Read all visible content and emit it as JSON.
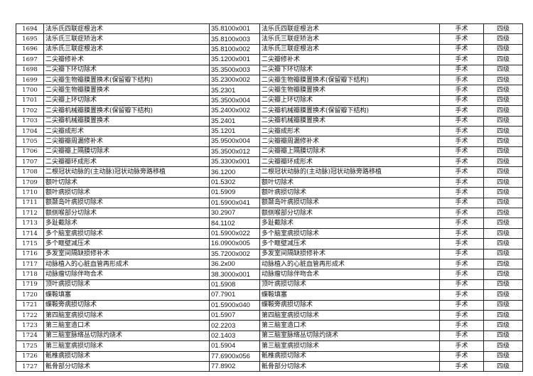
{
  "table": {
    "rows": [
      [
        "1694",
        "法乐氏四联症根治术",
        "35.8100x001",
        "法乐氏四联症根治术",
        "手术",
        "四级"
      ],
      [
        "1695",
        "法乐氏三联症矫治术",
        "35.8100x003",
        "法乐氏三联症矫治术",
        "手术",
        "四级"
      ],
      [
        "1696",
        "法乐氏三联症根治术",
        "35.8100x002",
        "法乐氏三联症根治术",
        "手术",
        "四级"
      ],
      [
        "1697",
        "二尖瓣修补术",
        "35.1200x001",
        "二尖瓣修补术",
        "手术",
        "四级"
      ],
      [
        "1698",
        "二尖瓣下环切除术",
        "35.3500x003",
        "二尖瓣下环切除术",
        "手术",
        "四级"
      ],
      [
        "1699",
        "二尖瓣生物瓣膜置换术(保留瓣下结构)",
        "35.2300x002",
        "二尖瓣生物瓣膜置换术(保留瓣下结构)",
        "手术",
        "四级"
      ],
      [
        "1700",
        "二尖瓣生物瓣膜置换术",
        "35.2301",
        "二尖瓣生物瓣膜置换术",
        "手术",
        "四级"
      ],
      [
        "1701",
        "二尖瓣上环切除术",
        "35.3500x004",
        "二尖瓣上环切除术",
        "手术",
        "四级"
      ],
      [
        "1702",
        "二尖瓣机械瓣膜置换术(保留瓣下结构)",
        "35.2400x002",
        "二尖瓣机械瓣膜置换术(保留瓣下结构)",
        "手术",
        "四级"
      ],
      [
        "1703",
        "二尖瓣机械瓣膜置换术",
        "35.2401",
        "二尖瓣机械瓣膜置换术",
        "手术",
        "四级"
      ],
      [
        "1704",
        "二尖瓣成形术",
        "35.1201",
        "二尖瓣成形术",
        "手术",
        "四级"
      ],
      [
        "1705",
        "二尖瓣瓣周漏修补术",
        "35.9500x004",
        "二尖瓣瓣周漏修补术",
        "手术",
        "四级"
      ],
      [
        "1706",
        "二尖瓣瓣上隔膜切除术",
        "35.3500x012",
        "二尖瓣瓣上隔膜切除术",
        "手术",
        "四级"
      ],
      [
        "1707",
        "二尖瓣瓣环成形术",
        "35.3300x001",
        "二尖瓣瓣环成形术",
        "手术",
        "四级"
      ],
      [
        "1708",
        "二根冠状动脉的(主动脉)冠状动脉旁路移植",
        "36.1200",
        "二根冠状动脉的(主动脉)冠状动脉旁路移植",
        "手术",
        "四级"
      ],
      [
        "1709",
        "额叶切除术",
        "01.5302",
        "额叶切除术",
        "手术",
        "四级"
      ],
      [
        "1710",
        "额叶病损切除术",
        "01.5909",
        "额叶病损切除术",
        "手术",
        "四级"
      ],
      [
        "1711",
        "额颞岛叶病损切除术",
        "01.5900x041",
        "额颞岛叶病损切除术",
        "手术",
        "四级"
      ],
      [
        "1712",
        "额侧喉部分切除术",
        "30.2907",
        "额侧喉部分切除术",
        "手术",
        "四级"
      ],
      [
        "1713",
        "多趾截除术",
        "84.1102",
        "多趾截除术",
        "手术",
        "四级"
      ],
      [
        "1714",
        "多个脑室病损切除术",
        "01.5900x022",
        "多个脑室病损切除术",
        "手术",
        "四级"
      ],
      [
        "1715",
        "多个眶壁减压术",
        "16.0900x005",
        "多个眶壁减压术",
        "手术",
        "四级"
      ],
      [
        "1716",
        "多发室间隔缺损修补术",
        "35.7200x002",
        "多发室间隔缺损修补术",
        "手术",
        "四级"
      ],
      [
        "1717",
        "动脉植入的心脏血管再形成术",
        "36.2x00",
        "动脉植入的心脏血管再形成术",
        "手术",
        "四级"
      ],
      [
        "1718",
        "动脉瘤切除伴吻合术",
        "38.3000x001",
        "动脉瘤切除伴吻合术",
        "手术",
        "四级"
      ],
      [
        "1719",
        "顶叶病损切除术",
        "01.5908",
        "顶叶病损切除术",
        "手术",
        "四级"
      ],
      [
        "1720",
        "蝶鞍填塞",
        "07.7901",
        "蝶鞍填塞",
        "手术",
        "四级"
      ],
      [
        "1721",
        "蝶鞍旁病损切除术",
        "01.5900x040",
        "蝶鞍旁病损切除术",
        "手术",
        "四级"
      ],
      [
        "1722",
        "第四脑室病损切除术",
        "01.5907",
        "第四脑室病损切除术",
        "手术",
        "四级"
      ],
      [
        "1723",
        "第三脑室造口术",
        "02.2203",
        "第三脑室造口术",
        "手术",
        "四级"
      ],
      [
        "1724",
        "第三脑室脉络丛切除灼烧术",
        "02.1403",
        "第三脑室脉络丛切除灼烧术",
        "手术",
        "四级"
      ],
      [
        "1725",
        "第三脑室病损切除术",
        "01.5904",
        "第三脑室病损切除术",
        "手术",
        "四级"
      ],
      [
        "1726",
        "骶椎病损切除术",
        "77.6900x056",
        "骶椎病损切除术",
        "手术",
        "四级"
      ],
      [
        "1727",
        "骶骨部分切除术",
        "77.8902",
        "骶骨部分切除术",
        "手术",
        "四级"
      ]
    ]
  }
}
